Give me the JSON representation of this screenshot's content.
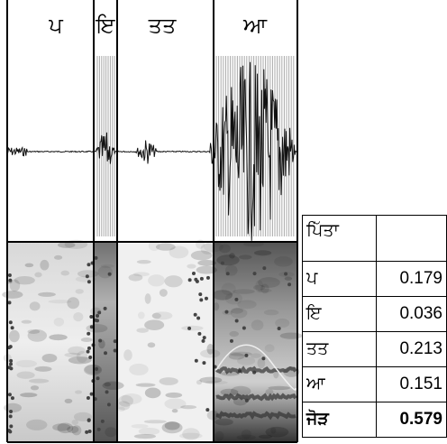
{
  "segments": [
    "ਪ",
    "ਇ",
    "ਤਤ",
    "ਆ"
  ],
  "table": {
    "header": "ਪਿੱਤਾ",
    "rows": [
      [
        "ਪ",
        0.179
      ],
      [
        "ਇ",
        0.036
      ],
      [
        "ਤਤ",
        0.213
      ],
      [
        "ਆ",
        0.151
      ]
    ],
    "total": [
      "ਜੋੜ",
      0.579
    ]
  }
}
